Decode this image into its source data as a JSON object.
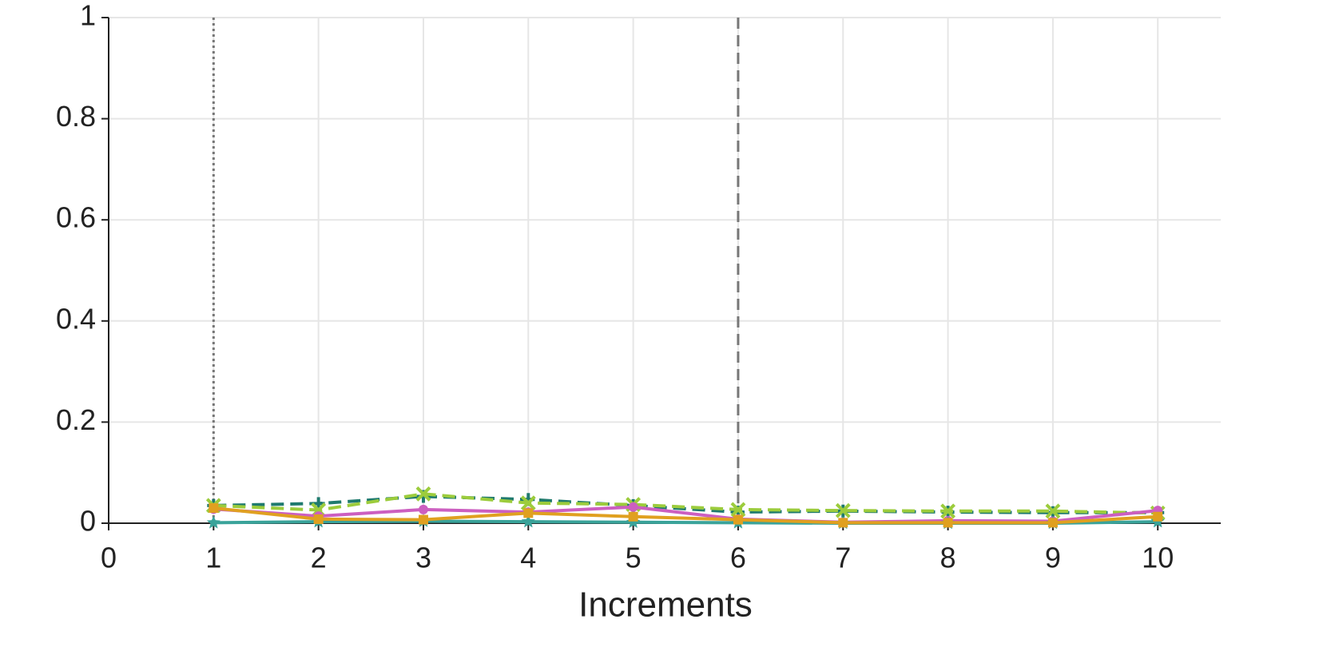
{
  "chart_data": {
    "type": "line",
    "x_label": "Increments",
    "x": [
      1,
      2,
      3,
      4,
      5,
      6,
      7,
      8,
      9,
      10
    ],
    "series": [
      {
        "color": "#1f7a6e",
        "dash": "dashed",
        "marker": "plus",
        "values": [
          0.035,
          0.039,
          0.053,
          0.047,
          0.035,
          0.022,
          0.024,
          0.022,
          0.021,
          0.021
        ]
      },
      {
        "color": "#9ccc3c",
        "dash": "dashed",
        "marker": "x",
        "values": [
          0.035,
          0.026,
          0.058,
          0.04,
          0.037,
          0.027,
          0.025,
          0.024,
          0.024,
          0.02
        ]
      },
      {
        "color": "#cc5fc0",
        "dash": "solid",
        "marker": "circle",
        "values": [
          0.028,
          0.014,
          0.027,
          0.022,
          0.032,
          0.008,
          0.002,
          0.005,
          0.004,
          0.025
        ]
      },
      {
        "color": "#3aa39a",
        "dash": "solid",
        "marker": "star",
        "values": [
          0.001,
          0.003,
          0.004,
          0.003,
          0.002,
          0.001,
          0.0,
          0.0,
          0.0,
          0.003
        ]
      },
      {
        "color": "#e0a020",
        "dash": "solid",
        "marker": "square",
        "values": [
          0.03,
          0.008,
          0.007,
          0.02,
          0.013,
          0.007,
          0.001,
          0.001,
          0.001,
          0.013
        ]
      }
    ],
    "vlines": [
      {
        "x": 1,
        "style": "dotted"
      },
      {
        "x": 6,
        "style": "dashed"
      }
    ],
    "xlim": [
      0,
      10.6
    ],
    "xticks": [
      0,
      1,
      2,
      3,
      4,
      5,
      6,
      7,
      8,
      9,
      10
    ],
    "ylim": [
      0,
      1
    ],
    "yticks": [
      0,
      0.2,
      0.4,
      0.6,
      0.8,
      1
    ],
    "grid": true
  }
}
